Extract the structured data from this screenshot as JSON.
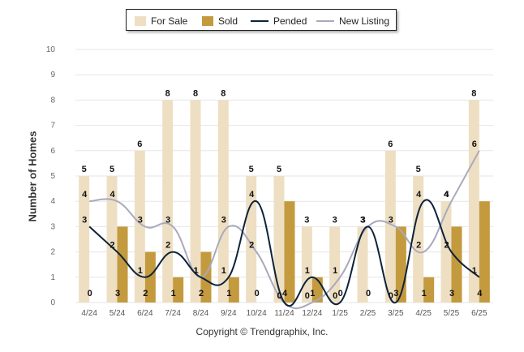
{
  "legend": {
    "for_sale": "For Sale",
    "sold": "Sold",
    "pended": "Pended",
    "new_listing": "New Listing"
  },
  "footer": "Copyright © Trendgraphix, Inc.",
  "colors": {
    "for_sale": "#eedfc3",
    "sold": "#c49a3e",
    "pended": "#0d233a",
    "new_listing": "#a8a9bd",
    "grid": "#e6e6e6"
  },
  "chart_data": {
    "type": "bar",
    "title": "",
    "xlabel": "",
    "ylabel": "Number of Homes",
    "ylim": [
      0,
      10
    ],
    "yticks": [
      0,
      1,
      2,
      3,
      4,
      5,
      6,
      7,
      8,
      9,
      10
    ],
    "grid": true,
    "legend_position": "top",
    "categories": [
      "4/24",
      "5/24",
      "6/24",
      "7/24",
      "8/24",
      "9/24",
      "10/24",
      "11/24",
      "12/24",
      "1/25",
      "2/25",
      "3/25",
      "4/25",
      "5/25",
      "6/25"
    ],
    "series": [
      {
        "name": "For Sale",
        "kind": "bar",
        "values": [
          5,
          5,
          6,
          8,
          8,
          8,
          5,
          5,
          3,
          3,
          3,
          6,
          5,
          4,
          8
        ]
      },
      {
        "name": "Sold",
        "kind": "bar",
        "values": [
          0,
          3,
          2,
          1,
          2,
          1,
          0,
          4,
          1,
          0,
          0,
          3,
          1,
          3,
          4
        ]
      },
      {
        "name": "Pended",
        "kind": "line",
        "values": [
          3,
          2,
          1,
          2,
          1,
          1,
          4,
          0,
          1,
          0,
          3,
          0,
          4,
          2,
          1
        ]
      },
      {
        "name": "New Listing",
        "kind": "line",
        "values": [
          4,
          4,
          3,
          3,
          1,
          3,
          2,
          0,
          0,
          1,
          3,
          3,
          2,
          4,
          6
        ]
      }
    ]
  }
}
